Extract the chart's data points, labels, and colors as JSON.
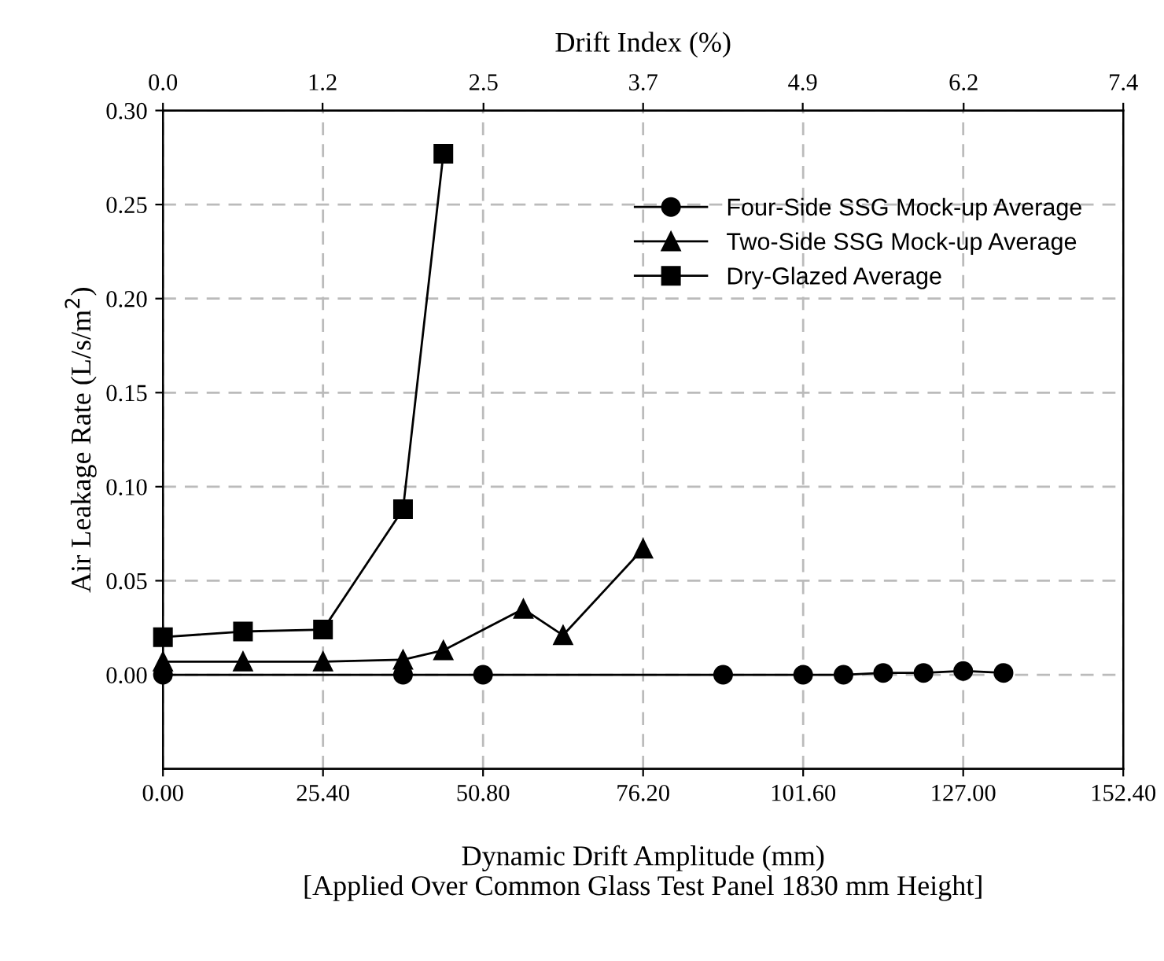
{
  "chart_data": {
    "type": "line",
    "xlabel": "Dynamic Drift Amplitude (mm)\n[Applied Over Common Glass Test Panel 1830 mm Height]",
    "ylabel": "Air Leakage Rate (L/s/m$^{2}$)",
    "x2label": "Drift Index (%)",
    "xlim": [
      0,
      152.4
    ],
    "xticks": [
      {
        "value": 0,
        "label": "0.00"
      },
      {
        "value": 25.4,
        "label": "25.40"
      },
      {
        "value": 50.8,
        "label": "50.80"
      },
      {
        "value": 76.2,
        "label": "76.20"
      },
      {
        "value": 101.6,
        "label": "101.60"
      },
      {
        "value": 127,
        "label": "127.00"
      },
      {
        "value": 152.4,
        "label": "152.40"
      }
    ],
    "x2lim": [
      0,
      7.4
    ],
    "x2ticks": [
      {
        "value": 0,
        "label": "0.0"
      },
      {
        "value": 1.23,
        "label": "1.2"
      },
      {
        "value": 2.47,
        "label": "2.5"
      },
      {
        "value": 3.7,
        "label": "3.7"
      },
      {
        "value": 4.93,
        "label": "4.9"
      },
      {
        "value": 6.17,
        "label": "6.2"
      },
      {
        "value": 7.4,
        "label": "7.4"
      }
    ],
    "ylim": [
      -0.05,
      0.3
    ],
    "yticks": [
      {
        "value": 0,
        "label": "0.00"
      },
      {
        "value": 0.05,
        "label": "0.05"
      },
      {
        "value": 0.1,
        "label": "0.10"
      },
      {
        "value": 0.15,
        "label": "0.15"
      },
      {
        "value": 0.2,
        "label": "0.20"
      },
      {
        "value": 0.25,
        "label": "0.25"
      },
      {
        "value": 0.3,
        "label": "0.30"
      }
    ],
    "grid": true,
    "legend": "top right",
    "line_style": "solid",
    "series": [
      {
        "name": "Four-Side SSG Mock-up Average",
        "color": "#000000",
        "marker": "circle",
        "x": [
          0,
          38.1,
          50.8,
          88.9,
          101.6,
          108.0,
          114.3,
          120.7,
          127.0,
          133.4
        ],
        "values": [
          0,
          0,
          0,
          0,
          0,
          0,
          0.001,
          0.001,
          0.002,
          0.001
        ]
      },
      {
        "name": "Two-Side SSG Mock-up Average",
        "color": "#000000",
        "marker": "triangle",
        "x": [
          0,
          12.7,
          25.4,
          38.1,
          44.5,
          57.2,
          63.5,
          76.2
        ],
        "values": [
          0.007,
          0.007,
          0.007,
          0.008,
          0.013,
          0.035,
          0.021,
          0.067
        ]
      },
      {
        "name": "Dry-Glazed Average",
        "color": "#000000",
        "marker": "square",
        "x": [
          0,
          12.7,
          25.4,
          38.1,
          44.5
        ],
        "values": [
          0.02,
          0.023,
          0.024,
          0.088,
          0.277
        ]
      }
    ]
  }
}
